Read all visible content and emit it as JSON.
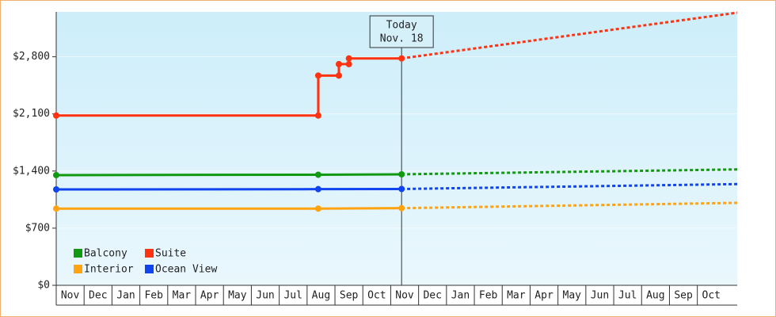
{
  "chart_data": {
    "type": "line",
    "categories": [
      "Nov",
      "Dec",
      "Jan",
      "Feb",
      "Mar",
      "Apr",
      "May",
      "Jun",
      "Jul",
      "Aug",
      "Sep",
      "Oct",
      "Nov",
      "Dec",
      "Jan",
      "Feb",
      "Mar",
      "Apr",
      "May",
      "Jun",
      "Jul",
      "Aug",
      "Sep",
      "Oct"
    ],
    "xlim": [
      0,
      24.43
    ],
    "ylim": [
      0,
      3350
    ],
    "yticks": [
      {
        "value": 0,
        "label": "$0"
      },
      {
        "value": 700,
        "label": "$700"
      },
      {
        "value": 1400,
        "label": "$1,400"
      },
      {
        "value": 2100,
        "label": "$2,100"
      },
      {
        "value": 2800,
        "label": "$2,800"
      }
    ],
    "annotation": {
      "lines": [
        "Today",
        "Nov. 18"
      ],
      "x": 12.39
    },
    "legend": "lower left",
    "series": [
      {
        "name": "Balcony",
        "color": "#119911",
        "x": [
          0,
          9.4,
          12.39
        ],
        "values": [
          1350,
          1355,
          1360
        ],
        "projection": {
          "x": [
            12.39,
            24.43
          ],
          "values": [
            1360,
            1420
          ]
        }
      },
      {
        "name": "Suite",
        "color": "#ff3311",
        "x": [
          0,
          9.4,
          9.4,
          10.14,
          10.14,
          10.5,
          10.5,
          12.39
        ],
        "values": [
          2080,
          2080,
          2570,
          2570,
          2710,
          2710,
          2780,
          2780
        ],
        "projection": {
          "x": [
            12.39,
            24.43
          ],
          "values": [
            2780,
            3340
          ]
        }
      },
      {
        "name": "Interior",
        "color": "#ffa311",
        "x": [
          0,
          9.4,
          12.39
        ],
        "values": [
          940,
          940,
          945
        ],
        "projection": {
          "x": [
            12.39,
            24.43
          ],
          "values": [
            945,
            1010
          ]
        }
      },
      {
        "name": "Ocean View",
        "color": "#1144ee",
        "x": [
          0,
          9.4,
          12.39
        ],
        "values": [
          1175,
          1178,
          1180
        ],
        "projection": {
          "x": [
            12.39,
            24.43
          ],
          "values": [
            1180,
            1240
          ]
        }
      }
    ]
  }
}
